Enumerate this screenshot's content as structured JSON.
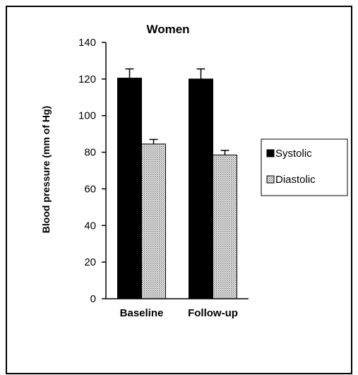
{
  "chart_data": {
    "type": "bar",
    "title": "Women",
    "xlabel": "",
    "ylabel": "Blood pressure (mm of Hg)",
    "categories": [
      "Baseline",
      "Follow-up"
    ],
    "series": [
      {
        "name": "Systolic",
        "values": [
          120.5,
          120
        ],
        "errors": [
          5,
          5.5
        ],
        "color": "#000000",
        "pattern": "solid"
      },
      {
        "name": "Diastolic",
        "values": [
          84.5,
          78.5
        ],
        "errors": [
          2.5,
          2.5
        ],
        "color": "#d9d9d9",
        "pattern": "dotted"
      }
    ],
    "ylim": [
      0,
      140
    ],
    "yticks": [
      0,
      20,
      40,
      60,
      80,
      100,
      120,
      140
    ],
    "grid": false,
    "legend_position": "right"
  }
}
